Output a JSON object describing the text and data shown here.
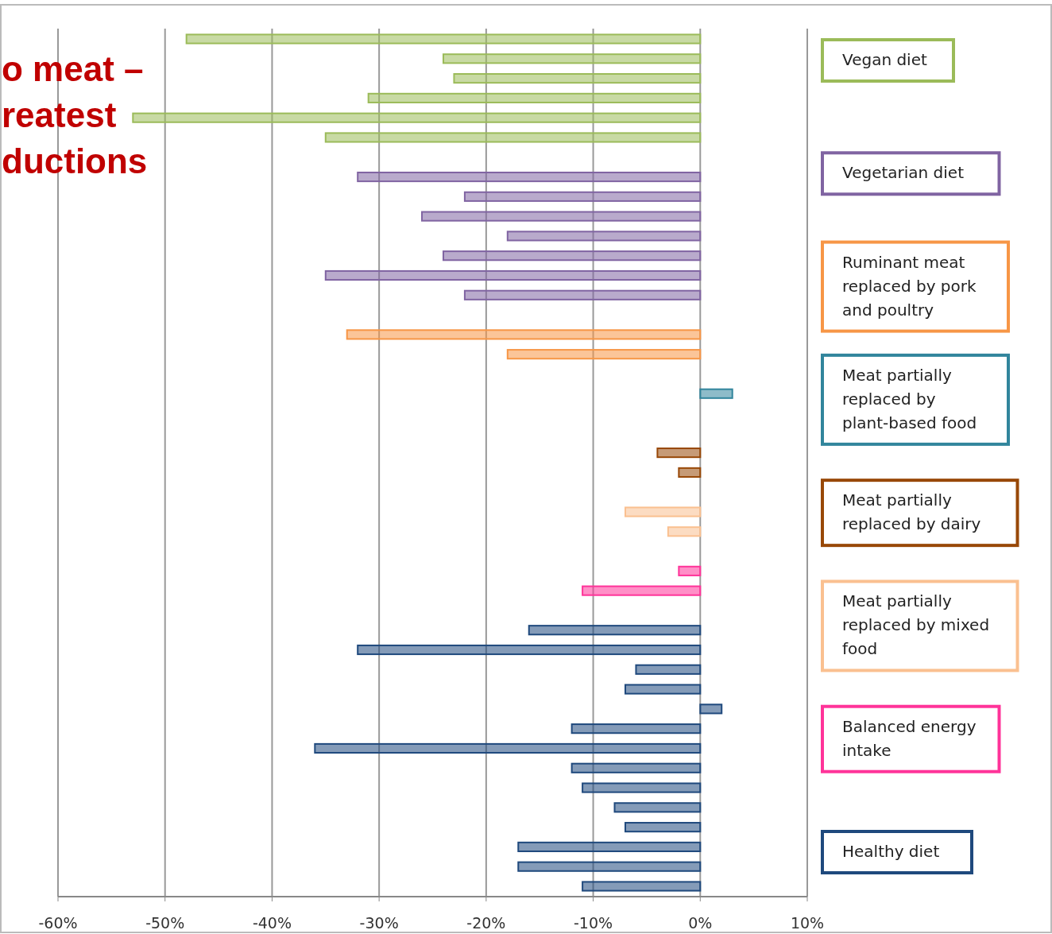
{
  "chart_data": {
    "type": "bar",
    "orientation": "horizontal",
    "categories": [
      null,
      null,
      null,
      null,
      null,
      null,
      null,
      null,
      null,
      null,
      null,
      null,
      null,
      null,
      null,
      null,
      null,
      null,
      null,
      null,
      null,
      null,
      null,
      null,
      null,
      null,
      null,
      null,
      null,
      null,
      null,
      null,
      null,
      null,
      null,
      null,
      null,
      null,
      null,
      null,
      null,
      null,
      null,
      null
    ],
    "series": [
      {
        "name": "Vegan diet",
        "color": "#9bbb59",
        "values": [
          -48,
          -24,
          -23,
          -31,
          -53,
          -35,
          null,
          null,
          null,
          null,
          null,
          null,
          null,
          null,
          null,
          null,
          null,
          null,
          null,
          null,
          null,
          null,
          null,
          null,
          null,
          null,
          null,
          null,
          null,
          null,
          null,
          null,
          null,
          null,
          null,
          null,
          null,
          null,
          null,
          null,
          null,
          null,
          null,
          null
        ]
      },
      {
        "name": "Vegetarian diet",
        "color": "#8064a2",
        "values": [
          null,
          null,
          null,
          null,
          null,
          null,
          null,
          -32,
          -22,
          -26,
          -18,
          -24,
          -35,
          -22,
          null,
          null,
          null,
          null,
          null,
          null,
          null,
          null,
          null,
          null,
          null,
          null,
          null,
          null,
          null,
          null,
          null,
          null,
          null,
          null,
          null,
          null,
          null,
          null,
          null,
          null,
          null,
          null,
          null,
          null
        ]
      },
      {
        "name": "Ruminant meat replaced by pork and poultry",
        "color": "#f79646",
        "values": [
          null,
          null,
          null,
          null,
          null,
          null,
          null,
          null,
          null,
          null,
          null,
          null,
          null,
          null,
          null,
          -33,
          -18,
          null,
          null,
          null,
          null,
          null,
          null,
          null,
          null,
          null,
          null,
          null,
          null,
          null,
          null,
          null,
          null,
          null,
          null,
          null,
          null,
          null,
          null,
          null,
          null,
          null,
          null,
          null
        ]
      },
      {
        "name": "Meat partially replaced by plant-based food",
        "color": "#31859c",
        "values": [
          null,
          null,
          null,
          null,
          null,
          null,
          null,
          null,
          null,
          null,
          null,
          null,
          null,
          null,
          null,
          null,
          null,
          null,
          3,
          null,
          null,
          null,
          null,
          null,
          null,
          null,
          null,
          null,
          null,
          null,
          null,
          null,
          null,
          null,
          null,
          null,
          null,
          null,
          null,
          null,
          null,
          null,
          null,
          null
        ]
      },
      {
        "name": "Meat partially replaced by dairy",
        "color": "#984807",
        "values": [
          null,
          null,
          null,
          null,
          null,
          null,
          null,
          null,
          null,
          null,
          null,
          null,
          null,
          null,
          null,
          null,
          null,
          null,
          null,
          null,
          null,
          -4,
          -2,
          null,
          null,
          null,
          null,
          null,
          null,
          null,
          null,
          null,
          null,
          null,
          null,
          null,
          null,
          null,
          null,
          null,
          null,
          null,
          null,
          null
        ]
      },
      {
        "name": "Meat partially replaced by mixed food",
        "color": "#fac090",
        "values": [
          null,
          null,
          null,
          null,
          null,
          null,
          null,
          null,
          null,
          null,
          null,
          null,
          null,
          null,
          null,
          null,
          null,
          null,
          null,
          null,
          null,
          null,
          null,
          null,
          -7,
          -3,
          null,
          null,
          null,
          null,
          null,
          null,
          null,
          null,
          null,
          null,
          null,
          null,
          null,
          null,
          null,
          null,
          null,
          null
        ]
      },
      {
        "name": "Balanced energy intake",
        "color": "#ff3399",
        "values": [
          null,
          null,
          null,
          null,
          null,
          null,
          null,
          null,
          null,
          null,
          null,
          null,
          null,
          null,
          null,
          null,
          null,
          null,
          null,
          null,
          null,
          null,
          null,
          null,
          null,
          null,
          null,
          -2,
          -11,
          null,
          null,
          null,
          null,
          null,
          null,
          null,
          null,
          null,
          null,
          null,
          null,
          null,
          null,
          null
        ]
      },
      {
        "name": "Healthy diet",
        "color": "#1f497d",
        "values": [
          null,
          null,
          null,
          null,
          null,
          null,
          null,
          null,
          null,
          null,
          null,
          null,
          null,
          null,
          null,
          null,
          null,
          null,
          null,
          null,
          null,
          null,
          null,
          null,
          null,
          null,
          null,
          null,
          null,
          null,
          -16,
          -32,
          -6,
          -7,
          2,
          -12,
          -36,
          -12,
          -11,
          -8,
          -7,
          -17,
          -17,
          -11
        ]
      }
    ],
    "xlim": [
      -60,
      10
    ],
    "xticks": [
      {
        "value": -60,
        "label": "-60%"
      },
      {
        "value": -50,
        "label": "-50%"
      },
      {
        "value": -40,
        "label": "-40%"
      },
      {
        "value": -30,
        "label": "-30%"
      },
      {
        "value": -20,
        "label": "-20%"
      },
      {
        "value": -10,
        "label": "-10%"
      },
      {
        "value": 0,
        "label": "0%"
      },
      {
        "value": 10,
        "label": "10%"
      }
    ],
    "grid": "x",
    "legend": "right",
    "annotations": [
      "o meat –\nreatest\nductions"
    ]
  }
}
